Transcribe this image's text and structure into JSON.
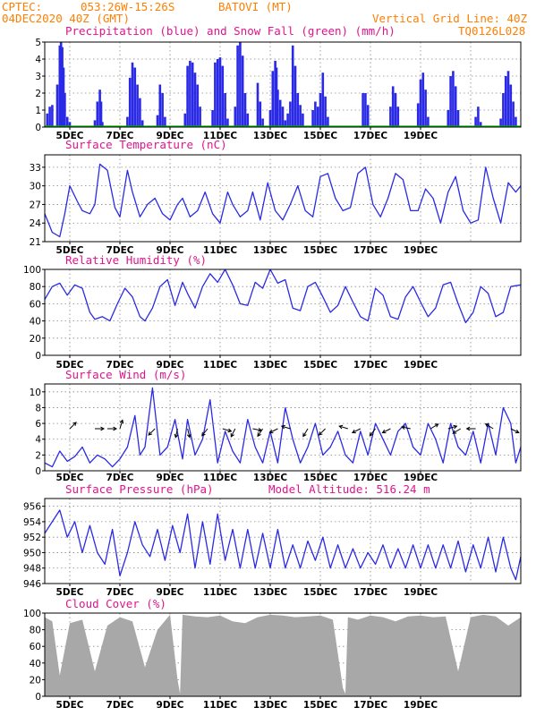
{
  "header": {
    "source": "CPTEC:",
    "coords": "053:26W-15:26S",
    "station": "BATOVI (MT)",
    "date": "04DEC2020 40Z (GMT)",
    "grid_note": "Vertical Grid Line: 40Z",
    "code": "TQ0126L028"
  },
  "colors": {
    "line": "#2a2ae6",
    "snow": "#00b000",
    "cloud": "#a8a8a8",
    "title": "#e0148c",
    "header": "#ff7f00"
  },
  "x_labels": [
    "5DEC",
    "7DEC",
    "9DEC",
    "11DEC",
    "13DEC",
    "15DEC",
    "17DEC",
    "19DEC"
  ],
  "chart_data": [
    {
      "type": "bar",
      "title": "Precipitation (blue) and Snow Fall (green) (mm/h)",
      "ylim": [
        0,
        5
      ],
      "yticks": [
        "0",
        "1",
        "2",
        "3",
        "4",
        "5"
      ],
      "grid": true,
      "series": [
        {
          "name": "Precipitation",
          "color": "#2a2ae6",
          "events": [
            [
              0.1,
              0.8
            ],
            [
              0.2,
              1.2
            ],
            [
              0.3,
              1.3
            ],
            [
              0.5,
              2.5
            ],
            [
              0.6,
              4.8
            ],
            [
              0.65,
              5
            ],
            [
              0.7,
              4.7
            ],
            [
              0.75,
              3.5
            ],
            [
              0.8,
              2
            ],
            [
              0.9,
              0.6
            ],
            [
              1.0,
              0.3
            ],
            [
              2.0,
              0.4
            ],
            [
              2.1,
              1.5
            ],
            [
              2.2,
              2.2
            ],
            [
              2.25,
              1.5
            ],
            [
              2.3,
              0.3
            ],
            [
              3.3,
              0.6
            ],
            [
              3.4,
              2.9
            ],
            [
              3.5,
              3.8
            ],
            [
              3.6,
              3.5
            ],
            [
              3.7,
              2.5
            ],
            [
              3.8,
              1.7
            ],
            [
              3.9,
              0.4
            ],
            [
              4.5,
              0.7
            ],
            [
              4.6,
              2.5
            ],
            [
              4.7,
              2
            ],
            [
              4.8,
              0.6
            ],
            [
              5.6,
              0.8
            ],
            [
              5.7,
              3.6
            ],
            [
              5.8,
              3.9
            ],
            [
              5.9,
              3.8
            ],
            [
              6.0,
              3.2
            ],
            [
              6.1,
              2.5
            ],
            [
              6.2,
              1.2
            ],
            [
              6.7,
              1
            ],
            [
              6.8,
              3.8
            ],
            [
              6.9,
              4
            ],
            [
              7.0,
              4.1
            ],
            [
              7.1,
              3.6
            ],
            [
              7.2,
              2
            ],
            [
              7.3,
              0.5
            ],
            [
              7.6,
              1.2
            ],
            [
              7.7,
              4.8
            ],
            [
              7.8,
              5
            ],
            [
              7.9,
              4.2
            ],
            [
              8.0,
              2
            ],
            [
              8.1,
              0.8
            ],
            [
              8.5,
              2.6
            ],
            [
              8.6,
              1.5
            ],
            [
              8.7,
              0.5
            ],
            [
              9.0,
              1
            ],
            [
              9.1,
              3.3
            ],
            [
              9.2,
              3.9
            ],
            [
              9.25,
              3.5
            ],
            [
              9.3,
              2.2
            ],
            [
              9.4,
              1.6
            ],
            [
              9.5,
              1.2
            ],
            [
              9.6,
              0.4
            ],
            [
              9.7,
              0.8
            ],
            [
              9.8,
              1.5
            ],
            [
              9.9,
              4.8
            ],
            [
              10.0,
              3.6
            ],
            [
              10.1,
              2
            ],
            [
              10.2,
              1.3
            ],
            [
              10.3,
              0.8
            ],
            [
              10.7,
              1
            ],
            [
              10.8,
              1.5
            ],
            [
              10.9,
              1.2
            ],
            [
              11.0,
              2
            ],
            [
              11.1,
              3.2
            ],
            [
              11.2,
              1.8
            ],
            [
              11.3,
              0.6
            ],
            [
              12.7,
              2
            ],
            [
              12.8,
              2
            ],
            [
              12.9,
              1.3
            ],
            [
              13.8,
              1.2
            ],
            [
              13.9,
              2.4
            ],
            [
              14.0,
              2
            ],
            [
              14.1,
              1.2
            ],
            [
              14.9,
              1.4
            ],
            [
              15.0,
              2.8
            ],
            [
              15.1,
              3.2
            ],
            [
              15.2,
              2.2
            ],
            [
              15.3,
              0.6
            ],
            [
              16.1,
              1
            ],
            [
              16.2,
              3
            ],
            [
              16.3,
              3.3
            ],
            [
              16.4,
              2.4
            ],
            [
              16.5,
              1
            ],
            [
              17.2,
              0.6
            ],
            [
              17.3,
              1.2
            ],
            [
              17.4,
              0.3
            ],
            [
              18.2,
              0.5
            ],
            [
              18.3,
              2
            ],
            [
              18.4,
              3
            ],
            [
              18.5,
              3.3
            ],
            [
              18.6,
              2.5
            ],
            [
              18.7,
              1.5
            ],
            [
              18.8,
              0.6
            ]
          ]
        },
        {
          "name": "Snow Fall",
          "color": "#00b000",
          "values": "all 0"
        }
      ]
    },
    {
      "type": "line",
      "title": "Surface Temperature (nC)",
      "ylim": [
        21,
        35
      ],
      "yticks": [
        "21",
        "24",
        "27",
        "30",
        "33"
      ],
      "grid": true,
      "x": [
        0,
        0.3,
        0.6,
        0.8,
        1.0,
        1.3,
        1.5,
        1.8,
        2.0,
        2.2,
        2.5,
        2.8,
        3.0,
        3.3,
        3.5,
        3.8,
        4.1,
        4.4,
        4.7,
        5.0,
        5.3,
        5.5,
        5.8,
        6.1,
        6.4,
        6.7,
        7.0,
        7.3,
        7.5,
        7.8,
        8.1,
        8.3,
        8.6,
        8.9,
        9.2,
        9.5,
        9.8,
        10.1,
        10.4,
        10.7,
        11.0,
        11.3,
        11.6,
        11.9,
        12.2,
        12.5,
        12.8,
        13.1,
        13.4,
        13.7,
        14.0,
        14.3,
        14.6,
        14.9,
        15.2,
        15.5,
        15.8,
        16.1,
        16.4,
        16.7,
        17.0,
        17.3,
        17.6,
        17.9,
        18.2,
        18.5,
        18.8,
        19.0
      ],
      "values": [
        25.5,
        22.5,
        21.8,
        25.5,
        30,
        27.5,
        26,
        25.5,
        27,
        33.5,
        32.5,
        26.5,
        25,
        32.5,
        29,
        25,
        27,
        28,
        25.5,
        24.5,
        27,
        28,
        25,
        26,
        29,
        25.5,
        24,
        29,
        27,
        25,
        26,
        29,
        24.5,
        30.5,
        26,
        24.5,
        27,
        30,
        26,
        25,
        31.5,
        32,
        28,
        26,
        26.5,
        32,
        33,
        27,
        25,
        28,
        32,
        31,
        26,
        26,
        29.5,
        28,
        24,
        29,
        31.5,
        26,
        24,
        24.5,
        33,
        28,
        24,
        30.5,
        29,
        30
      ]
    },
    {
      "type": "line",
      "title": "Relative Humidity (%)",
      "ylim": [
        0,
        100
      ],
      "yticks": [
        "0",
        "20",
        "40",
        "60",
        "80",
        "100"
      ],
      "grid": true,
      "x": [
        0,
        0.3,
        0.6,
        0.9,
        1.2,
        1.5,
        1.8,
        2.0,
        2.3,
        2.6,
        2.9,
        3.2,
        3.5,
        3.8,
        4.0,
        4.3,
        4.6,
        4.9,
        5.2,
        5.5,
        5.7,
        6.0,
        6.3,
        6.6,
        6.9,
        7.2,
        7.5,
        7.8,
        8.1,
        8.4,
        8.7,
        9.0,
        9.3,
        9.6,
        9.9,
        10.2,
        10.5,
        10.8,
        11.1,
        11.4,
        11.7,
        12.0,
        12.3,
        12.6,
        12.9,
        13.2,
        13.5,
        13.8,
        14.1,
        14.4,
        14.7,
        15.0,
        15.3,
        15.6,
        15.9,
        16.2,
        16.5,
        16.8,
        17.1,
        17.4,
        17.7,
        18.0,
        18.3,
        18.6,
        19.0
      ],
      "values": [
        65,
        80,
        84,
        70,
        82,
        78,
        50,
        42,
        45,
        40,
        60,
        78,
        68,
        45,
        40,
        55,
        80,
        88,
        58,
        85,
        72,
        55,
        80,
        95,
        85,
        100,
        82,
        60,
        58,
        85,
        78,
        100,
        84,
        88,
        55,
        52,
        80,
        85,
        68,
        50,
        58,
        80,
        62,
        45,
        40,
        78,
        70,
        45,
        42,
        68,
        80,
        62,
        45,
        55,
        82,
        85,
        60,
        38,
        50,
        80,
        72,
        45,
        50,
        80,
        82
      ]
    },
    {
      "type": "line",
      "title": "Surface Wind (m/s)",
      "ylim": [
        0,
        11
      ],
      "yticks": [
        "0",
        "2",
        "4",
        "6",
        "8",
        "10"
      ],
      "grid": true,
      "x": [
        0,
        0.3,
        0.6,
        0.9,
        1.2,
        1.5,
        1.8,
        2.1,
        2.4,
        2.7,
        3.0,
        3.3,
        3.6,
        3.8,
        4.0,
        4.3,
        4.6,
        4.9,
        5.2,
        5.5,
        5.7,
        6.0,
        6.3,
        6.6,
        6.9,
        7.2,
        7.5,
        7.8,
        8.1,
        8.4,
        8.7,
        9.0,
        9.3,
        9.6,
        9.9,
        10.2,
        10.5,
        10.8,
        11.1,
        11.4,
        11.7,
        12.0,
        12.3,
        12.6,
        12.9,
        13.2,
        13.5,
        13.8,
        14.1,
        14.4,
        14.7,
        15.0,
        15.3,
        15.6,
        15.9,
        16.2,
        16.5,
        16.8,
        17.1,
        17.4,
        17.7,
        18.0,
        18.3,
        18.6,
        18.8,
        19.0
      ],
      "values": [
        1,
        0.5,
        2.5,
        1.2,
        1.8,
        3,
        1,
        2,
        1.5,
        0.5,
        1.5,
        3,
        7,
        2,
        3,
        10.5,
        2,
        3,
        6.5,
        1.5,
        6.5,
        2,
        4,
        9,
        1,
        5,
        2.5,
        1,
        6.5,
        3,
        1,
        5,
        1,
        8,
        4,
        1,
        3,
        6,
        2,
        3,
        5,
        2,
        1,
        5,
        2,
        6,
        4,
        2,
        5,
        6,
        3,
        2,
        6,
        4,
        1,
        6,
        3,
        2,
        5,
        1,
        6,
        2,
        8,
        6,
        1,
        3
      ]
    },
    {
      "type": "line",
      "title": "Surface Pressure (hPa)",
      "annotation": "Model Altitude: 516.24 m",
      "ylim": [
        946,
        957
      ],
      "yticks": [
        "946",
        "948",
        "950",
        "952",
        "954",
        "956"
      ],
      "grid": true,
      "x": [
        0,
        0.3,
        0.6,
        0.9,
        1.2,
        1.5,
        1.8,
        2.1,
        2.4,
        2.7,
        3.0,
        3.3,
        3.6,
        3.9,
        4.2,
        4.5,
        4.8,
        5.1,
        5.4,
        5.7,
        6.0,
        6.3,
        6.6,
        6.9,
        7.2,
        7.5,
        7.8,
        8.1,
        8.4,
        8.7,
        9.0,
        9.3,
        9.6,
        9.9,
        10.2,
        10.5,
        10.8,
        11.1,
        11.4,
        11.7,
        12.0,
        12.3,
        12.6,
        12.9,
        13.2,
        13.5,
        13.8,
        14.1,
        14.4,
        14.7,
        15.0,
        15.3,
        15.6,
        15.9,
        16.2,
        16.5,
        16.8,
        17.1,
        17.4,
        17.7,
        18.0,
        18.3,
        18.6,
        18.8,
        19.0
      ],
      "values": [
        952.5,
        954,
        955.5,
        952,
        954,
        950,
        953.5,
        950,
        948.5,
        953,
        947,
        950,
        954,
        951,
        949.5,
        953,
        949,
        953.5,
        950,
        955,
        948,
        954,
        948.5,
        955,
        949,
        953,
        948,
        953,
        948,
        952.5,
        948,
        953,
        948,
        951,
        948,
        951.5,
        949,
        952,
        948,
        951,
        948,
        950.5,
        948,
        950,
        948.5,
        951,
        948,
        950.5,
        948,
        951,
        948,
        951,
        948,
        951,
        948,
        951.5,
        947.5,
        951,
        948,
        952,
        947.5,
        952,
        948,
        946.5,
        949.5
      ]
    },
    {
      "type": "area",
      "title": "Cloud Cover (%)",
      "ylim": [
        0,
        100
      ],
      "yticks": [
        "0",
        "20",
        "40",
        "60",
        "80",
        "100"
      ],
      "grid": true,
      "x": [
        0,
        0.3,
        0.6,
        1.0,
        1.5,
        2.0,
        2.5,
        3.0,
        3.5,
        4.0,
        4.5,
        5.0,
        5.3,
        5.4,
        5.5,
        6.0,
        6.5,
        7.0,
        7.5,
        8.0,
        8.5,
        9.0,
        9.5,
        10.0,
        10.5,
        11.0,
        11.5,
        11.9,
        12.0,
        12.1,
        12.5,
        13.0,
        13.5,
        14.0,
        14.5,
        15.0,
        15.5,
        16.0,
        16.5,
        17.0,
        17.5,
        18.0,
        18.5,
        19.0
      ],
      "values": [
        95,
        90,
        25,
        88,
        92,
        30,
        85,
        95,
        90,
        35,
        80,
        98,
        20,
        3,
        98,
        96,
        95,
        97,
        90,
        88,
        95,
        98,
        97,
        95,
        96,
        97,
        92,
        10,
        3,
        95,
        92,
        97,
        95,
        90,
        96,
        97,
        95,
        96,
        30,
        95,
        98,
        96,
        85,
        95
      ]
    }
  ]
}
